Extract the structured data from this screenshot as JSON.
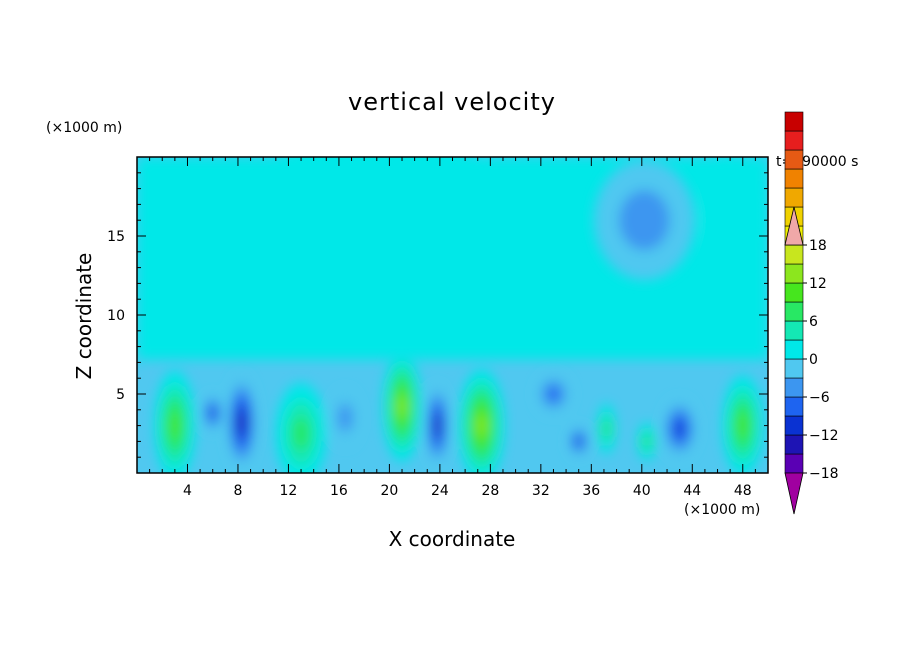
{
  "chart_data": {
    "type": "heatmap",
    "title": "vertical velocity",
    "xlabel": "X coordinate",
    "ylabel": "Z coordinate",
    "x_unit": "(×1000 m)",
    "y_unit": "(×1000 m)",
    "time_label": "t=990000 s",
    "xlim": [
      0,
      50
    ],
    "ylim": [
      0,
      20
    ],
    "x_ticks": [
      4,
      8,
      12,
      16,
      20,
      24,
      28,
      32,
      36,
      40,
      44,
      48
    ],
    "y_ticks": [
      5,
      10,
      15
    ],
    "colorbar": {
      "min": -21,
      "max": 21,
      "step": 3,
      "tick_labels": [
        "18",
        "12",
        "6",
        "0",
        "−6",
        "−12",
        "−18"
      ],
      "tick_values": [
        18,
        12,
        6,
        0,
        -6,
        -12,
        -18
      ],
      "extend": "both",
      "colors": [
        "#a000a0",
        "#5a00b4",
        "#1e14b4",
        "#0a32d2",
        "#1e64f0",
        "#3c96f0",
        "#50c8f0",
        "#00e8e8",
        "#14e8b4",
        "#28e864",
        "#46e61e",
        "#8ce61e",
        "#c8e61e",
        "#f0f000",
        "#f0d200",
        "#f0a800",
        "#f08200",
        "#e65a14",
        "#e61e1e",
        "#c80000",
        "#f0a8a8"
      ]
    },
    "features": [
      {
        "x": 3.0,
        "z": 3.0,
        "w": 1.6,
        "h": 3.5,
        "value": 13
      },
      {
        "x": 6.0,
        "z": 3.8,
        "w": 0.8,
        "h": 1.2,
        "value": -11
      },
      {
        "x": 8.3,
        "z": 3.2,
        "w": 1.2,
        "h": 3.0,
        "value": -14
      },
      {
        "x": 13.0,
        "z": 2.5,
        "w": 2.0,
        "h": 3.2,
        "value": 9
      },
      {
        "x": 16.5,
        "z": 3.5,
        "w": 1.2,
        "h": 1.8,
        "value": -6
      },
      {
        "x": 21.0,
        "z": 4.2,
        "w": 1.5,
        "h": 3.5,
        "value": 16
      },
      {
        "x": 23.8,
        "z": 3.0,
        "w": 0.9,
        "h": 2.6,
        "value": -14
      },
      {
        "x": 27.3,
        "z": 3.0,
        "w": 1.8,
        "h": 3.6,
        "value": 14
      },
      {
        "x": 33.0,
        "z": 5.0,
        "w": 1.4,
        "h": 1.3,
        "value": -10
      },
      {
        "x": 35.0,
        "z": 2.0,
        "w": 0.8,
        "h": 1.0,
        "value": -11
      },
      {
        "x": 37.2,
        "z": 2.8,
        "w": 0.7,
        "h": 1.6,
        "value": 9
      },
      {
        "x": 40.4,
        "z": 2.0,
        "w": 0.7,
        "h": 1.2,
        "value": 9
      },
      {
        "x": 43.0,
        "z": 2.8,
        "w": 1.4,
        "h": 1.9,
        "value": -11
      },
      {
        "x": 48.0,
        "z": 3.0,
        "w": 1.6,
        "h": 3.2,
        "value": 11
      },
      {
        "x": 47.0,
        "z": 16.3,
        "w": 2.2,
        "h": 3.4,
        "value": 3
      },
      {
        "x": 40.2,
        "z": 16.0,
        "w": 4.0,
        "h": 3.8,
        "value": -5
      },
      {
        "x": 19.0,
        "z": 16.0,
        "w": 10.0,
        "h": 5.5,
        "value": 1
      }
    ]
  }
}
